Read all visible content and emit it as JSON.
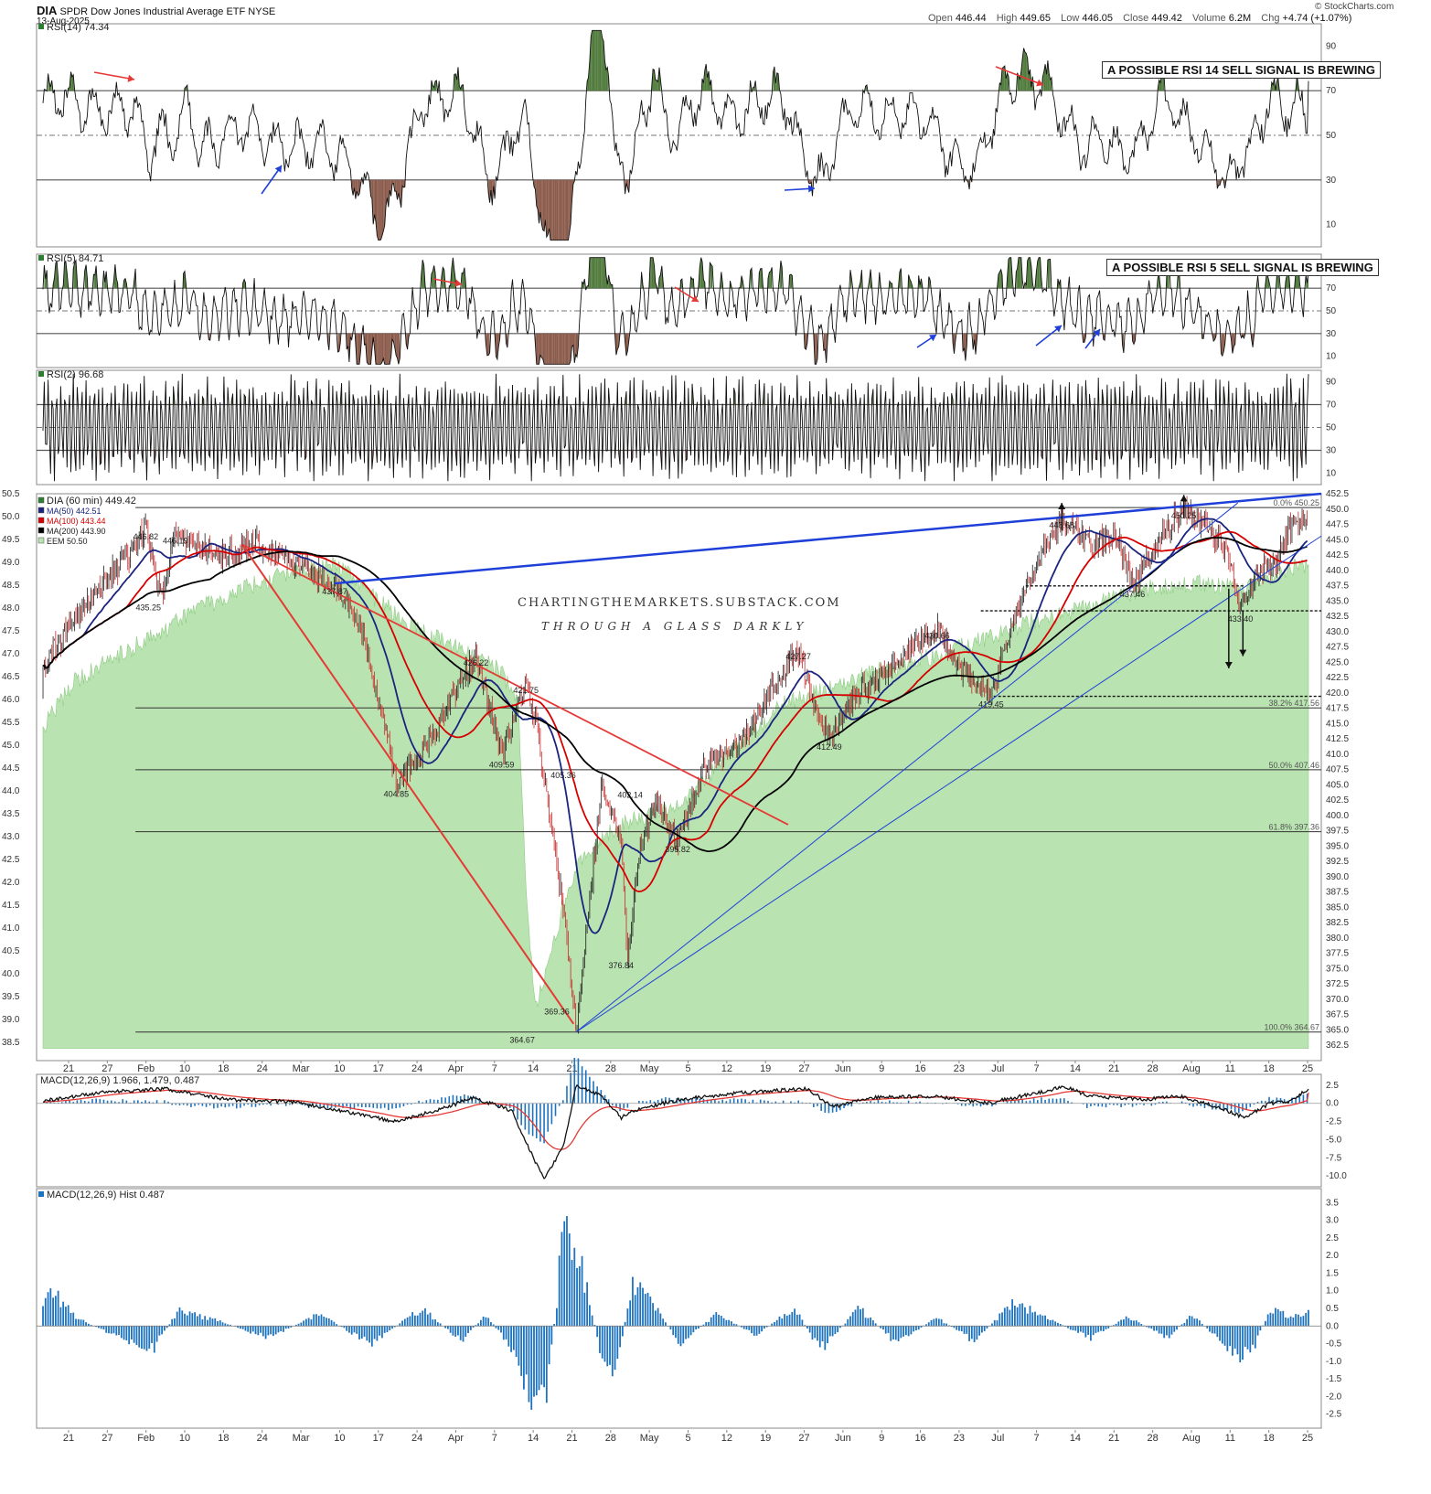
{
  "header": {
    "symbol": "DIA",
    "name": "SPDR Dow Jones Industrial Average ETF",
    "exchange": "NYSE",
    "date": "13-Aug-2025",
    "open_label": "Open",
    "open": "446.44",
    "high_label": "High",
    "high": "449.65",
    "low_label": "Low",
    "low": "446.05",
    "close_label": "Close",
    "close": "449.42",
    "volume_label": "Volume",
    "volume": "6.2M",
    "chg_label": "Chg",
    "chg": "+4.74 (+1.07%)",
    "brand": "© StockCharts.com"
  },
  "notes": {
    "rsi14": "A POSSIBLE RSI 14 SELL SIGNAL IS BREWING",
    "rsi5": "A POSSIBLE RSI 5 SELL SIGNAL IS BREWING"
  },
  "watermark": {
    "line1": "CHARTINGTHEMARKETS.SUBSTACK.COM",
    "line2": "THROUGH A GLASS DARKLY"
  },
  "colors": {
    "up": "#2e7d32",
    "down": "#c62828",
    "ma50": "#1a237e",
    "ma100": "#d50000",
    "ma200": "#000000",
    "eem_fill": "#b9e3b0",
    "trend_red": "#e53935",
    "trend_blue": "#1e3fd8",
    "macd_hist": "#1e73be",
    "overbought_fill": "#4f7a3b",
    "oversold_fill": "#8a5a4a"
  },
  "chart_data": [
    {
      "type": "line",
      "title": "RSI(14) 74.34",
      "indicator": "RSI(14)",
      "last": 74.34,
      "ylim": [
        0,
        100
      ],
      "yticks": [
        10,
        30,
        50,
        70,
        90
      ],
      "reference_lines": [
        30,
        50,
        70
      ],
      "annotation": "A POSSIBLE RSI 14 SELL SIGNAL IS BREWING"
    },
    {
      "type": "line",
      "title": "RSI(5) 84.71",
      "indicator": "RSI(5)",
      "last": 84.71,
      "ylim": [
        0,
        100
      ],
      "yticks": [
        10,
        30,
        50,
        70,
        90
      ],
      "reference_lines": [
        30,
        50,
        70
      ],
      "annotation": "A POSSIBLE RSI 5 SELL SIGNAL IS BREWING"
    },
    {
      "type": "line",
      "title": "RSI(2) 96.68",
      "indicator": "RSI(2)",
      "last": 96.68,
      "ylim": [
        0,
        100
      ],
      "yticks": [
        10,
        30,
        50,
        70,
        90
      ],
      "reference_lines": [
        30,
        50,
        70
      ]
    },
    {
      "type": "candlestick",
      "title": "DIA (60 min) 449.42",
      "legend": [
        {
          "name": "DIA (60 min)",
          "value": "449.42"
        },
        {
          "name": "MA(50)",
          "value": "442.51"
        },
        {
          "name": "MA(100)",
          "value": "443.44"
        },
        {
          "name": "MA(200)",
          "value": "443.90"
        },
        {
          "name": "EEM",
          "value": "50.50"
        }
      ],
      "ylim": [
        360.0,
        452.5
      ],
      "yticks_right": [
        "362.5",
        "365.0",
        "367.5",
        "370.0",
        "372.5",
        "375.0",
        "377.5",
        "380.0",
        "382.5",
        "385.0",
        "387.5",
        "390.0",
        "392.5",
        "395.0",
        "397.5",
        "400.0",
        "402.5",
        "405.0",
        "407.5",
        "410.0",
        "412.5",
        "415.0",
        "417.5",
        "420.0",
        "422.5",
        "425.0",
        "427.5",
        "430.0",
        "432.5",
        "435.0",
        "437.5",
        "440.0",
        "442.5",
        "445.0",
        "447.5",
        "450.0",
        "452.5"
      ],
      "yticks_left": [
        "38.5",
        "39.0",
        "39.5",
        "40.0",
        "40.5",
        "41.0",
        "41.5",
        "42.0",
        "42.5",
        "43.0",
        "43.5",
        "44.0",
        "44.5",
        "45.0",
        "45.5",
        "46.0",
        "46.5",
        "47.0",
        "47.5",
        "48.0",
        "48.5",
        "49.0",
        "49.5",
        "50.0",
        "50.5"
      ],
      "x_ticks": [
        "21",
        "27",
        "Feb",
        "10",
        "18",
        "24",
        "Mar",
        "10",
        "17",
        "24",
        "Apr",
        "7",
        "14",
        "21",
        "28",
        "May",
        "5",
        "12",
        "19",
        "27",
        "Jun",
        "9",
        "16",
        "23",
        "Jul",
        "7",
        "14",
        "21",
        "28",
        "Aug",
        "11",
        "18",
        "25"
      ],
      "key_points": [
        {
          "label": "446.82",
          "t": 0.085,
          "v": 446.82
        },
        {
          "label": "446.19",
          "t": 0.108,
          "v": 446.19
        },
        {
          "label": "435.25",
          "t": 0.087,
          "v": 435.25
        },
        {
          "label": "437.87",
          "t": 0.232,
          "v": 437.87
        },
        {
          "label": "404.85",
          "t": 0.28,
          "v": 404.85
        },
        {
          "label": "426.22",
          "t": 0.342,
          "v": 426.22
        },
        {
          "label": "421.75",
          "t": 0.381,
          "v": 421.75
        },
        {
          "label": "409.59",
          "t": 0.362,
          "v": 409.59
        },
        {
          "label": "405.36",
          "t": 0.41,
          "v": 405.36
        },
        {
          "label": "364.67",
          "t": 0.378,
          "v": 364.67
        },
        {
          "label": "369.36",
          "t": 0.405,
          "v": 369.36
        },
        {
          "label": "402.14",
          "t": 0.462,
          "v": 402.14
        },
        {
          "label": "376.84",
          "t": 0.455,
          "v": 376.84
        },
        {
          "label": "395.82",
          "t": 0.499,
          "v": 395.82
        },
        {
          "label": "427.27",
          "t": 0.593,
          "v": 427.27
        },
        {
          "label": "412.49",
          "t": 0.617,
          "v": 412.49
        },
        {
          "label": "430.66",
          "t": 0.701,
          "v": 430.66
        },
        {
          "label": "419.45",
          "t": 0.743,
          "v": 419.45
        },
        {
          "label": "448.68",
          "t": 0.798,
          "v": 448.68
        },
        {
          "label": "437.46",
          "t": 0.853,
          "v": 437.46
        },
        {
          "label": "450.25",
          "t": 0.893,
          "v": 450.25
        },
        {
          "label": "433.40",
          "t": 0.937,
          "v": 433.4
        }
      ],
      "fib_levels": [
        {
          "label": "0.0% 450.25",
          "v": 450.25
        },
        {
          "label": "38.2% 417.56",
          "v": 417.56
        },
        {
          "label": "50.0% 407.46",
          "v": 407.46
        },
        {
          "label": "61.8% 397.36",
          "v": 397.36
        },
        {
          "label": "100.0% 364.67",
          "v": 364.67
        }
      ]
    },
    {
      "type": "line",
      "title": "MACD(12,26,9) 1.966, 1.479, 0.487",
      "series": [
        {
          "name": "MACD",
          "last": 1.966
        },
        {
          "name": "Signal",
          "last": 1.479
        },
        {
          "name": "Hist",
          "last": 0.487
        }
      ],
      "ylim": [
        -11.5,
        4.0
      ],
      "yticks": [
        "2.5",
        "0.0",
        "-2.5",
        "-5.0",
        "-7.5",
        "-10.0"
      ],
      "x_ticks": [
        "21",
        "27",
        "Feb",
        "10",
        "18",
        "24",
        "Mar",
        "10",
        "17",
        "24",
        "Apr",
        "7",
        "14",
        "21",
        "28",
        "May",
        "5",
        "12",
        "19",
        "27",
        "Jun",
        "9",
        "16",
        "23",
        "Jul",
        "7",
        "14",
        "21",
        "28",
        "Aug",
        "11",
        "18",
        "25"
      ]
    },
    {
      "type": "bar",
      "title": "MACD(12,26,9) Hist 0.487",
      "last": 0.487,
      "ylim": [
        -2.9,
        3.9
      ],
      "yticks": [
        "3.5",
        "3.0",
        "2.5",
        "2.0",
        "1.5",
        "1.0",
        "0.5",
        "0.0",
        "-0.5",
        "-1.0",
        "-1.5",
        "-2.0",
        "-2.5"
      ],
      "x_ticks": [
        "21",
        "27",
        "Feb",
        "10",
        "18",
        "24",
        "Mar",
        "10",
        "17",
        "24",
        "Apr",
        "7",
        "14",
        "21",
        "28",
        "May",
        "5",
        "12",
        "19",
        "27",
        "Jun",
        "9",
        "16",
        "23",
        "Jul",
        "7",
        "14",
        "21",
        "28",
        "Aug",
        "11",
        "18",
        "25"
      ]
    }
  ]
}
